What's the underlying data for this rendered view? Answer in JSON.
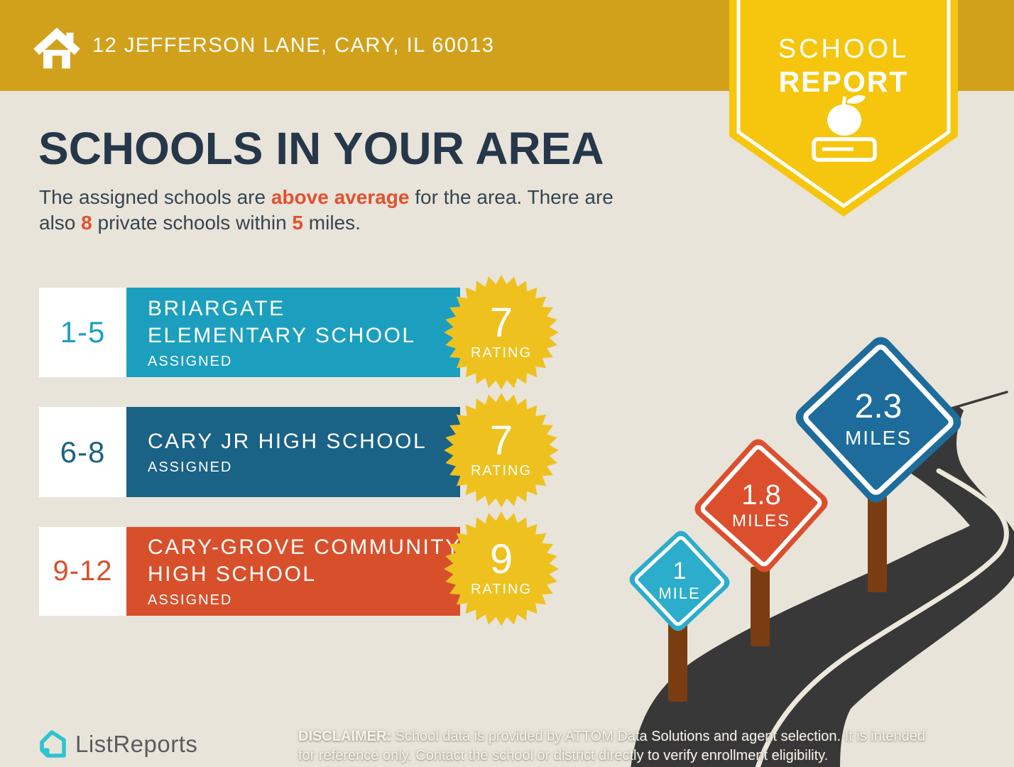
{
  "header": {
    "address": "12 JEFFERSON LANE, CARY, IL 60013"
  },
  "badge": {
    "title_line1": "SCHOOL",
    "title_line2": "REPORT"
  },
  "main": {
    "title": "SCHOOLS IN YOUR AREA",
    "subtitle": {
      "part1": "The assigned schools are ",
      "highlight": "above average",
      "part2": " for the area. There are",
      "part3": "also ",
      "count": "8",
      "part4": " private schools within ",
      "radius": "5",
      "part5": " miles."
    }
  },
  "schools": [
    {
      "grades": "1-5",
      "name_line1": "BRIARGATE",
      "name_line2": "ELEMENTARY SCHOOL",
      "status": "ASSIGNED",
      "rating": "7",
      "rating_label": "RATING"
    },
    {
      "grades": "6-8",
      "name_line1": "CARY JR HIGH SCHOOL",
      "name_line2": "",
      "status": "ASSIGNED",
      "rating": "7",
      "rating_label": "RATING"
    },
    {
      "grades": "9-12",
      "name_line1": "CARY-GROVE COMMUNITY",
      "name_line2": "HIGH SCHOOL",
      "status": "ASSIGNED",
      "rating": "9",
      "rating_label": "RATING"
    }
  ],
  "distance_signs": [
    {
      "value": "1",
      "unit": "MILE"
    },
    {
      "value": "1.8",
      "unit": "MILES"
    },
    {
      "value": "2.3",
      "unit": "MILES"
    }
  ],
  "footer": {
    "brand": "ListReports",
    "disclaimer_label": "DISCLAIMER:",
    "disclaimer_line1": " School data is provided by ATTOM Data Solutions and agent selection. It is intended",
    "disclaimer_line2": "for reference only. Contact the school or district directly to verify enrollment eligibility."
  },
  "colors": {
    "header_gold": "#D2A11C",
    "pennant_yellow": "#F5C60D",
    "star_yellow": "#EEC11F",
    "teal": "#1C9FBF",
    "dark_blue": "#1A6286",
    "orange_red": "#D8502B",
    "accent_orange": "#E2512E",
    "sign_teal": "#2BADCB",
    "sign_orange": "#DC4F2D",
    "sign_blue": "#1D6C9B",
    "road_gray": "#383838",
    "road_line": "#EDE8DC",
    "post_brown": "#7A3D12",
    "background_beige": "#E8E4DA",
    "title_navy": "#26374A",
    "logo_teal": "#2BC4CF"
  }
}
